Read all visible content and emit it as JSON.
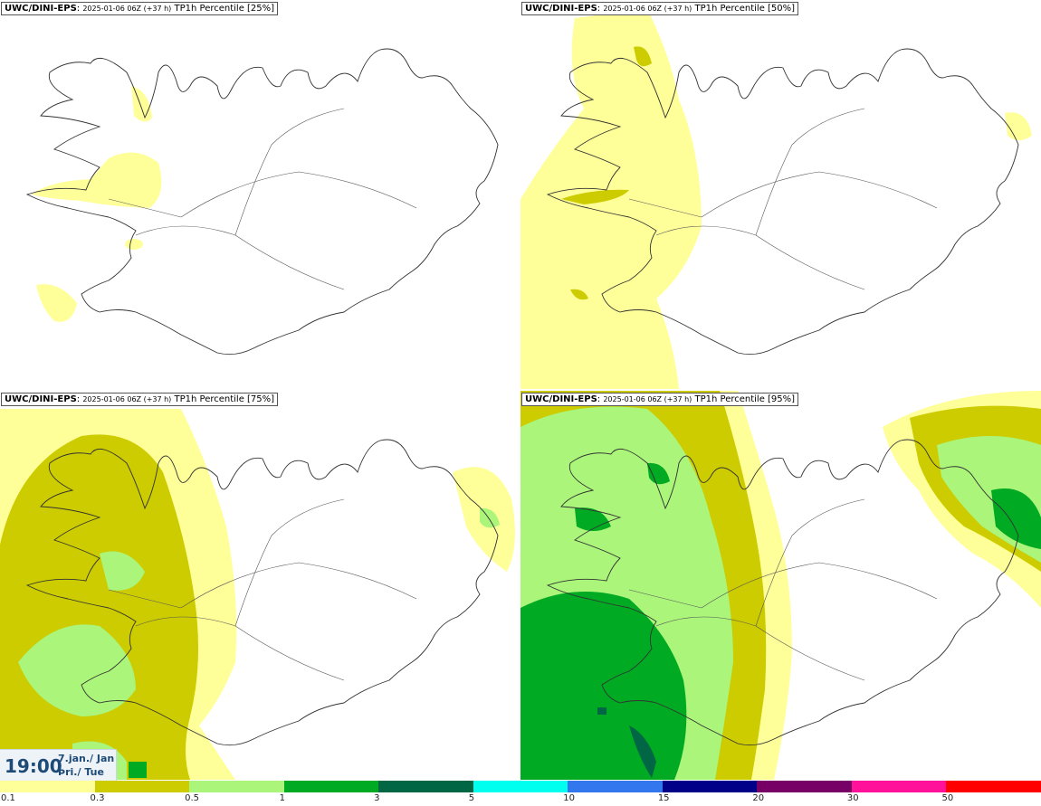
{
  "panels": [
    {
      "model": "UWC/DINI-EPS",
      "run": "2025-01-06 06Z (+37 h)",
      "product": "TP1h Percentile [25%]"
    },
    {
      "model": "UWC/DINI-EPS",
      "run": "2025-01-06 06Z (+37 h)",
      "product": "TP1h Percentile [50%]"
    },
    {
      "model": "UWC/DINI-EPS",
      "run": "2025-01-06 06Z (+37 h)",
      "product": "TP1h Percentile [75%]"
    },
    {
      "model": "UWC/DINI-EPS",
      "run": "2025-01-06 06Z (+37 h)",
      "product": "TP1h Percentile [95%]"
    }
  ],
  "valid_time": {
    "time": "19:00",
    "date": "7.jan./ Jan",
    "weekday": "Þri./ Tue"
  },
  "legend": {
    "colors": [
      "#ffff99",
      "#cccc00",
      "#aaf57a",
      "#00aa22",
      "#006644",
      "#00ffee",
      "#3377ee",
      "#000088",
      "#770066",
      "#ff1199",
      "#ff0000"
    ],
    "labels": [
      "0.1",
      "0.3",
      "0.5",
      "1",
      "3",
      "5",
      "10",
      "15",
      "20",
      "30",
      "50"
    ]
  }
}
